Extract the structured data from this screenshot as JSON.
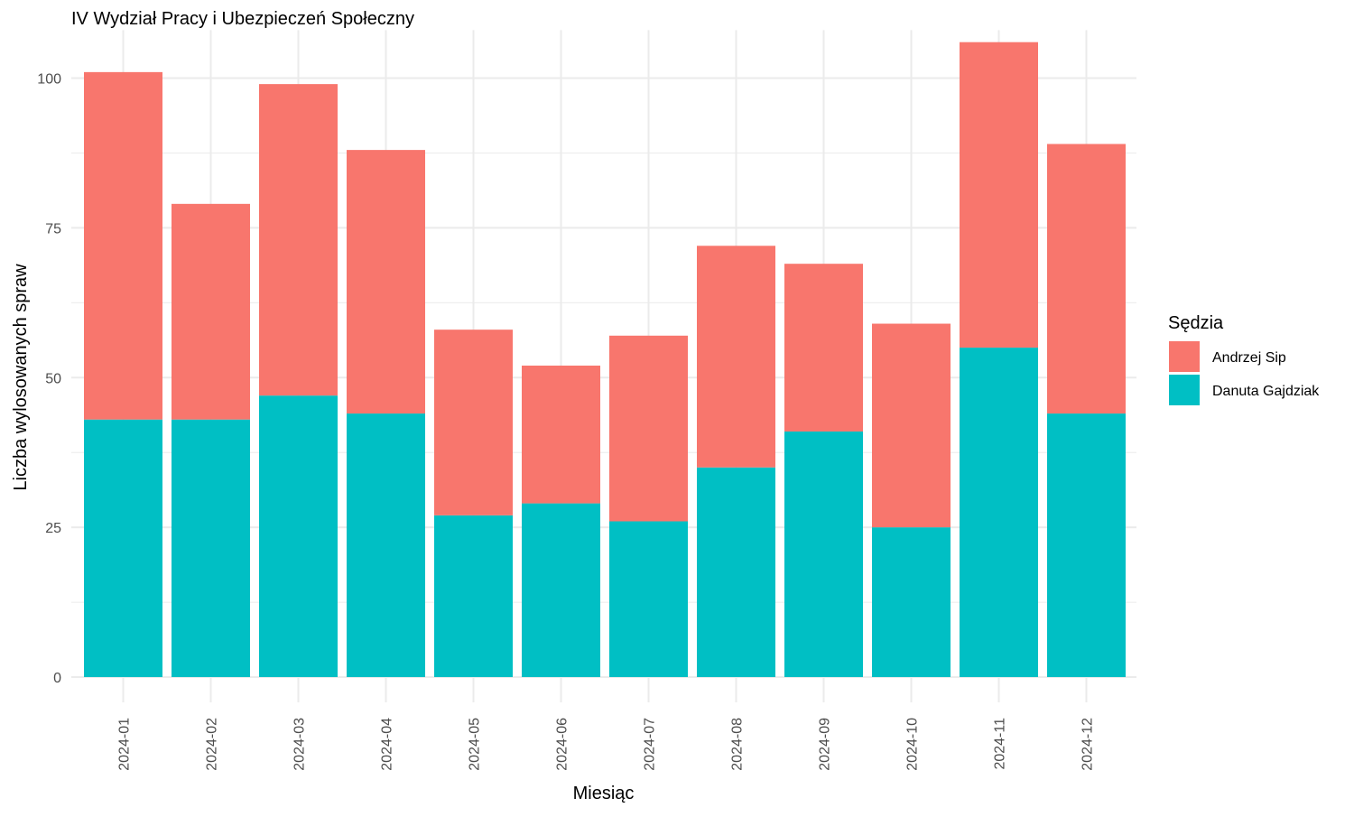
{
  "chart_data": {
    "type": "bar",
    "stacked": true,
    "title": "IV Wydział Pracy i Ubezpieczeń Społeczny",
    "xlabel": "Miesiąc",
    "ylabel": "Liczba wylosowanych spraw",
    "categories": [
      "2024-01",
      "2024-02",
      "2024-03",
      "2024-04",
      "2024-05",
      "2024-06",
      "2024-07",
      "2024-08",
      "2024-09",
      "2024-10",
      "2024-11",
      "2024-12"
    ],
    "series": [
      {
        "name": "Danuta Gajdziak",
        "color": "#00BFC4",
        "values": [
          43,
          43,
          47,
          44,
          27,
          29,
          26,
          35,
          41,
          25,
          55,
          44
        ]
      },
      {
        "name": "Andrzej Sip",
        "color": "#F8766D",
        "values": [
          58,
          36,
          52,
          44,
          31,
          23,
          31,
          37,
          28,
          34,
          51,
          45
        ]
      }
    ],
    "ylim": [
      0,
      108
    ],
    "yticks": [
      0,
      25,
      50,
      75,
      100
    ],
    "grid": true,
    "legend": {
      "title": "Sędzia",
      "placement": "right",
      "order": [
        "Andrzej Sip",
        "Danuta Gajdziak"
      ]
    }
  }
}
